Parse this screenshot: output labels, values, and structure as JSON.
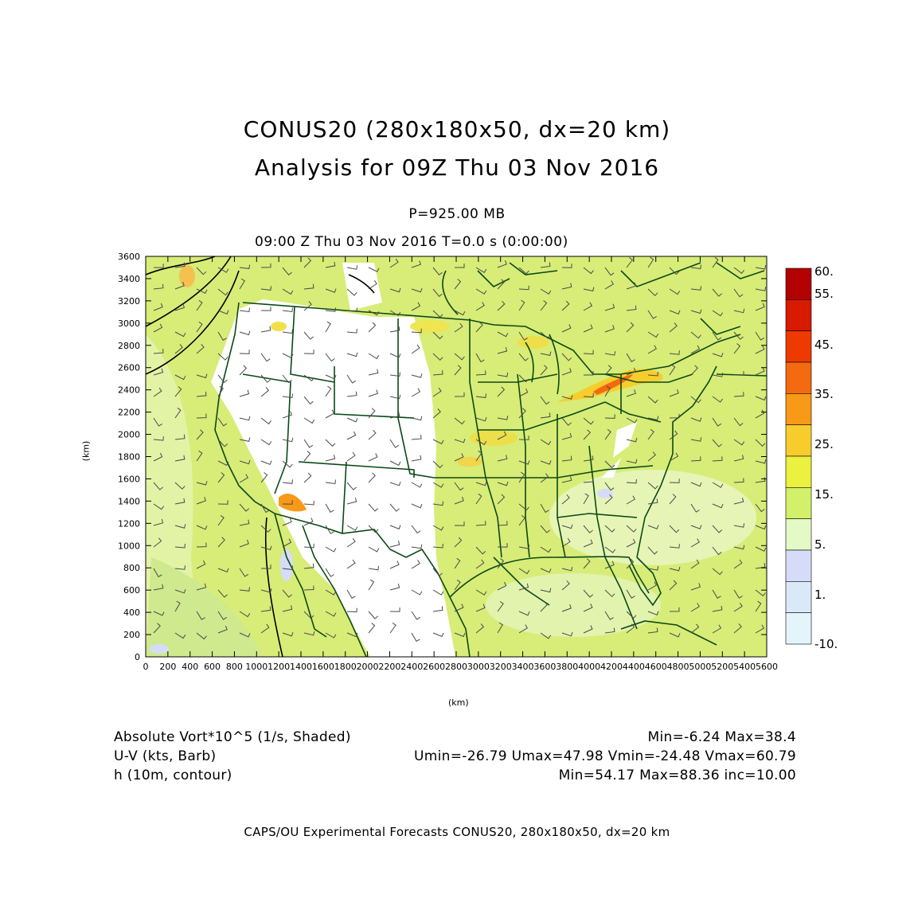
{
  "header": {
    "title_line1": "CONUS20 (280x180x50, dx=20 km)",
    "title_line2": "Analysis for 09Z Thu 03 Nov 2016",
    "level": "P=925.00 MB",
    "time_line": "09:00 Z Thu 03 Nov 2016    T=0.0 s (0:00:00)"
  },
  "axes": {
    "y_label": "(km)",
    "x_label": "(km)",
    "y_ticks": [
      "3600",
      "3400",
      "3200",
      "3000",
      "2800",
      "2600",
      "2400",
      "2200",
      "2000",
      "1800",
      "1600",
      "1400",
      "1200",
      "1000",
      "800",
      "600",
      "400",
      "200",
      "0"
    ],
    "x_ticks": [
      "0",
      "200",
      "400",
      "600",
      "800",
      "1000",
      "1200",
      "1400",
      "1600",
      "1800",
      "2000",
      "2200",
      "2400",
      "2600",
      "2800",
      "3000",
      "3200",
      "3400",
      "3600",
      "3800",
      "4000",
      "4200",
      "4400",
      "4600",
      "4800",
      "5000",
      "5200",
      "5400",
      "5600"
    ]
  },
  "colorbar": {
    "labels": [
      "60.",
      "55.",
      "45.",
      "35.",
      "25.",
      "15.",
      "5.",
      "1.",
      "-10."
    ],
    "colors": [
      "#b30000",
      "#d81a00",
      "#ee3a00",
      "#f46a10",
      "#f89a18",
      "#f7cd2e",
      "#ecf03e",
      "#d3f06a",
      "#e3f9c6",
      "#d6dcf8",
      "#d9e9f8",
      "#e3f5fa"
    ]
  },
  "map": {
    "field_color": "#d8ec78",
    "land_blank_color": "#ffffff",
    "boundary_color": "#0a4a14",
    "contour_color": "#000000",
    "barb_color": "#4a4a4a"
  },
  "legend": {
    "row1_left": "Absolute Vort*10^5 (1/s, Shaded)",
    "row1_right": "Min=-6.24 Max=38.4",
    "row2_left": "U-V (kts, Barb)",
    "row2_right": "Umin=-26.79 Umax=47.98 Vmin=-24.48 Vmax=60.79",
    "row3_left": "h (10m, contour)",
    "row3_right": "Min=54.17 Max=88.36 inc=10.00"
  },
  "footer": "CAPS/OU Experimental Forecasts  CONUS20, 280x180x50, dx=20 km"
}
